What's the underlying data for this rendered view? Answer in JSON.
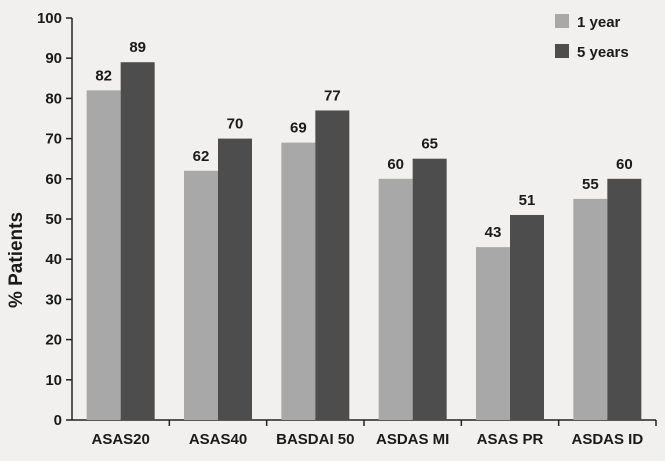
{
  "chart_data": {
    "type": "bar",
    "title": "",
    "xlabel": "",
    "ylabel": "% Patients",
    "ylim": [
      0,
      100
    ],
    "yticks": [
      0,
      10,
      20,
      30,
      40,
      50,
      60,
      70,
      80,
      90,
      100
    ],
    "grid": false,
    "legend_position": "top-right",
    "categories": [
      "ASAS20",
      "ASAS40",
      "BASDAI 50",
      "ASDAS MI",
      "ASAS PR",
      "ASDAS ID"
    ],
    "series": [
      {
        "name": "1 year",
        "values": [
          82,
          62,
          69,
          60,
          43,
          55
        ],
        "color": "#a8a8a8"
      },
      {
        "name": "5 years",
        "values": [
          89,
          70,
          77,
          65,
          51,
          60
        ],
        "color": "#4d4d4d"
      }
    ]
  }
}
